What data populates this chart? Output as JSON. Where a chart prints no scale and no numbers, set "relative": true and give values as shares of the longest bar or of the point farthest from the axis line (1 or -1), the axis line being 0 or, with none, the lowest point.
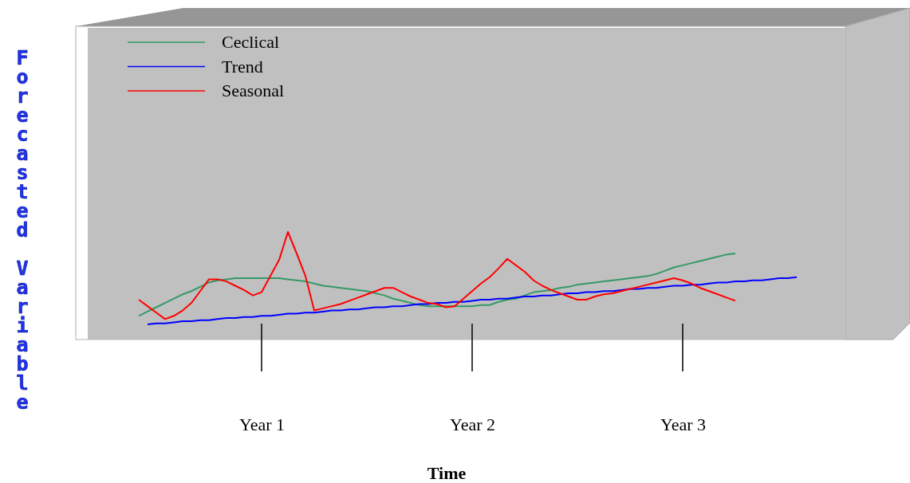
{
  "chart_data": {
    "type": "line",
    "relative": true,
    "xlabel": "Time",
    "ylabel": "Forecasted Variable",
    "categories": [
      null,
      null,
      null,
      null,
      null,
      null,
      null,
      null,
      null,
      null,
      null,
      null,
      null,
      null,
      null,
      "Year 1",
      null,
      null,
      null,
      null,
      null,
      null,
      null,
      null,
      null,
      null,
      null,
      null,
      null,
      null,
      null,
      null,
      null,
      null,
      null,
      null,
      null,
      null,
      null,
      "Year 2",
      null,
      null,
      null,
      null,
      null,
      null,
      null,
      null,
      null,
      null,
      null,
      null,
      null,
      null,
      null,
      null,
      null,
      null,
      null,
      null,
      null,
      null,
      null,
      "Year 3",
      null,
      null,
      null,
      null,
      null,
      null,
      null,
      null,
      null,
      null,
      null,
      null,
      null,
      null
    ],
    "legend": "top left",
    "line_style": "solid",
    "marker": "none",
    "series": [
      {
        "name": "Ceclical",
        "color": "#339966",
        "values": [
          null,
          0.22,
          0.26,
          0.3,
          0.34,
          0.38,
          0.42,
          0.45,
          0.49,
          0.53,
          0.55,
          0.56,
          0.57,
          0.57,
          0.57,
          0.57,
          0.57,
          0.57,
          0.56,
          0.55,
          0.54,
          0.52,
          0.5,
          0.49,
          0.48,
          0.47,
          0.46,
          0.45,
          0.43,
          0.41,
          0.38,
          0.36,
          0.34,
          0.32,
          0.31,
          0.31,
          0.31,
          0.31,
          0.31,
          0.31,
          0.32,
          0.32,
          0.35,
          0.37,
          0.38,
          0.41,
          0.44,
          0.45,
          0.46,
          0.48,
          0.49,
          0.51,
          0.52,
          0.53,
          0.54,
          0.55,
          0.56,
          0.57,
          0.58,
          0.59,
          0.61,
          0.64,
          0.67,
          0.69,
          0.71,
          0.73,
          0.75,
          0.77,
          0.79,
          0.8,
          null,
          null,
          null,
          null,
          null,
          null,
          null,
          null
        ]
      },
      {
        "name": "Trend",
        "color": "#0000ff",
        "values": [
          null,
          null,
          0.14,
          0.15,
          0.15,
          0.16,
          0.17,
          0.17,
          0.18,
          0.18,
          0.19,
          0.2,
          0.2,
          0.21,
          0.21,
          0.22,
          0.22,
          0.23,
          0.24,
          0.24,
          0.25,
          0.25,
          0.26,
          0.27,
          0.27,
          0.28,
          0.28,
          0.29,
          0.3,
          0.3,
          0.31,
          0.31,
          0.32,
          0.33,
          0.33,
          0.34,
          0.34,
          0.35,
          0.35,
          0.36,
          0.37,
          0.37,
          0.38,
          0.38,
          0.39,
          0.4,
          0.4,
          0.41,
          0.41,
          0.42,
          0.43,
          0.43,
          0.44,
          0.44,
          0.45,
          0.45,
          0.46,
          0.47,
          0.47,
          0.48,
          0.48,
          0.49,
          0.5,
          0.5,
          0.51,
          0.51,
          0.52,
          0.53,
          0.53,
          0.54,
          0.54,
          0.55,
          0.55,
          0.56,
          0.57,
          0.57,
          0.58,
          null
        ]
      },
      {
        "name": "Seasonal",
        "color": "#ff0000",
        "values": [
          null,
          0.37,
          0.31,
          0.25,
          0.19,
          0.22,
          0.27,
          0.34,
          0.45,
          0.56,
          0.56,
          0.54,
          0.5,
          0.46,
          0.41,
          0.44,
          0.59,
          0.74,
          1,
          0.8,
          0.59,
          0.27,
          0.29,
          0.31,
          0.33,
          0.36,
          0.39,
          0.42,
          0.45,
          0.48,
          0.48,
          0.44,
          0.4,
          0.37,
          0.34,
          0.33,
          0.3,
          0.31,
          0.38,
          0.45,
          0.52,
          0.58,
          0.66,
          0.75,
          0.69,
          0.63,
          0.55,
          0.5,
          0.46,
          0.43,
          0.4,
          0.37,
          0.37,
          0.4,
          0.42,
          0.43,
          0.45,
          0.47,
          0.49,
          0.51,
          0.53,
          0.55,
          0.57,
          0.55,
          0.52,
          0.48,
          0.45,
          0.42,
          0.39,
          0.36,
          null,
          null,
          null,
          null,
          null,
          null,
          null,
          null
        ]
      }
    ]
  }
}
